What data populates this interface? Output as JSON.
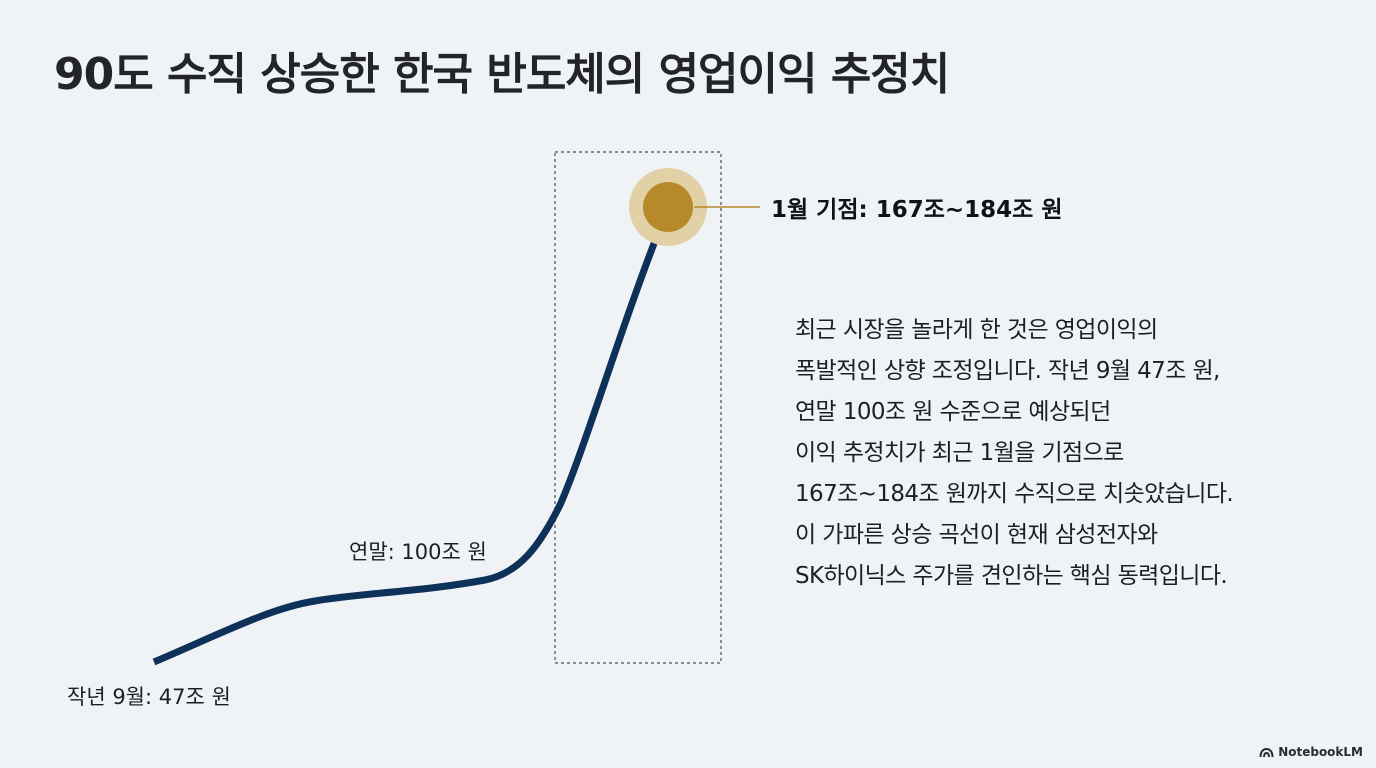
{
  "title": "90도 수직 상승한 한국 반도체의 영업이익 추정치",
  "colors": {
    "background": "#f0f3f6",
    "curve": "#0d3158",
    "highlight_dot": "#b6892a",
    "highlight_halo": "#e2d0a6",
    "frame": "#8a8d91"
  },
  "chart_data": {
    "type": "line",
    "points": [
      {
        "label": "작년 9월: 47조 원",
        "value": 47
      },
      {
        "label": "연말: 100조 원",
        "value": 100
      },
      {
        "label": "1월 기점: 167조~184조 원",
        "value_range": [
          167,
          184
        ]
      }
    ]
  },
  "description": [
    "최근 시장을 놀라게 한 것은 영업이익의",
    "폭발적인 상향 조정입니다. 작년 9월 47조 원,",
    "연말 100조 원 수준으로 예상되던",
    "이익 추정치가 최근 1월을 기점으로",
    "167조~184조 원까지 수직으로 치솟았습니다.",
    "이 가파른 상승 곡선이 현재 삼성전자와",
    "SK하이닉스 주가를 견인하는 핵심 동력입니다."
  ],
  "branding": {
    "name": "NotebookLM",
    "icon": "notebooklm-logo-icon"
  }
}
